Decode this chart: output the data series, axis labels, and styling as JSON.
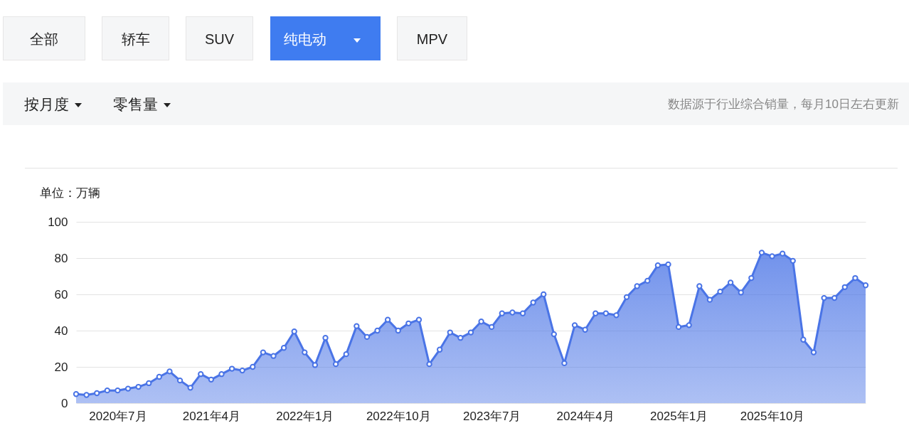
{
  "chart_data": {
    "type": "area",
    "ylabel": "单位：万辆",
    "categories": [
      null,
      null,
      null,
      null,
      "2020年7月",
      null,
      null,
      null,
      null,
      null,
      null,
      null,
      null,
      "2021年4月",
      null,
      null,
      null,
      null,
      null,
      null,
      null,
      null,
      "2022年1月",
      null,
      null,
      null,
      null,
      null,
      null,
      null,
      null,
      "2022年10月",
      null,
      null,
      null,
      null,
      null,
      null,
      null,
      null,
      "2023年7月",
      null,
      null,
      null,
      null,
      null,
      null,
      null,
      null,
      "2024年4月",
      null,
      null,
      null,
      null,
      null,
      null,
      null,
      null,
      "2025年1月",
      null,
      null,
      null,
      null,
      null,
      null,
      null,
      null,
      "2025年10月",
      null,
      null,
      null,
      null,
      null,
      null,
      null,
      null,
      null
    ],
    "series": [
      {
        "color": "#4a74e6",
        "values": [
          5,
          4.5,
          5.5,
          7,
          7,
          8,
          9,
          11,
          14.5,
          17.5,
          12.5,
          8.5,
          16,
          13,
          16,
          19,
          18,
          20,
          28,
          26,
          30.5,
          39.5,
          28,
          21,
          36,
          21.5,
          27,
          42.5,
          36.5,
          40,
          46,
          40,
          44,
          46,
          21.5,
          29.5,
          39,
          36,
          39,
          45,
          42,
          49.5,
          50,
          49.5,
          55.5,
          60,
          38,
          22,
          43,
          40.5,
          49.5,
          49.5,
          48.5,
          58.5,
          64.5,
          67.5,
          76,
          76.5,
          42,
          43,
          64.5,
          57,
          61.5,
          66.5,
          61,
          69,
          83,
          81,
          82.5,
          78.5,
          35,
          28,
          58,
          58,
          64,
          69,
          65
        ]
      }
    ],
    "ylim": [
      0,
      100
    ],
    "yticks": [
      0,
      20,
      40,
      60,
      80,
      100
    ],
    "grid": "y",
    "marker": "circle",
    "annotations": [
      "全部",
      "轿车",
      "SUV",
      "纯电动",
      "MPV",
      "按月度",
      "零售量",
      "数据源于行业综合销量，每月10日左右更新"
    ]
  }
}
